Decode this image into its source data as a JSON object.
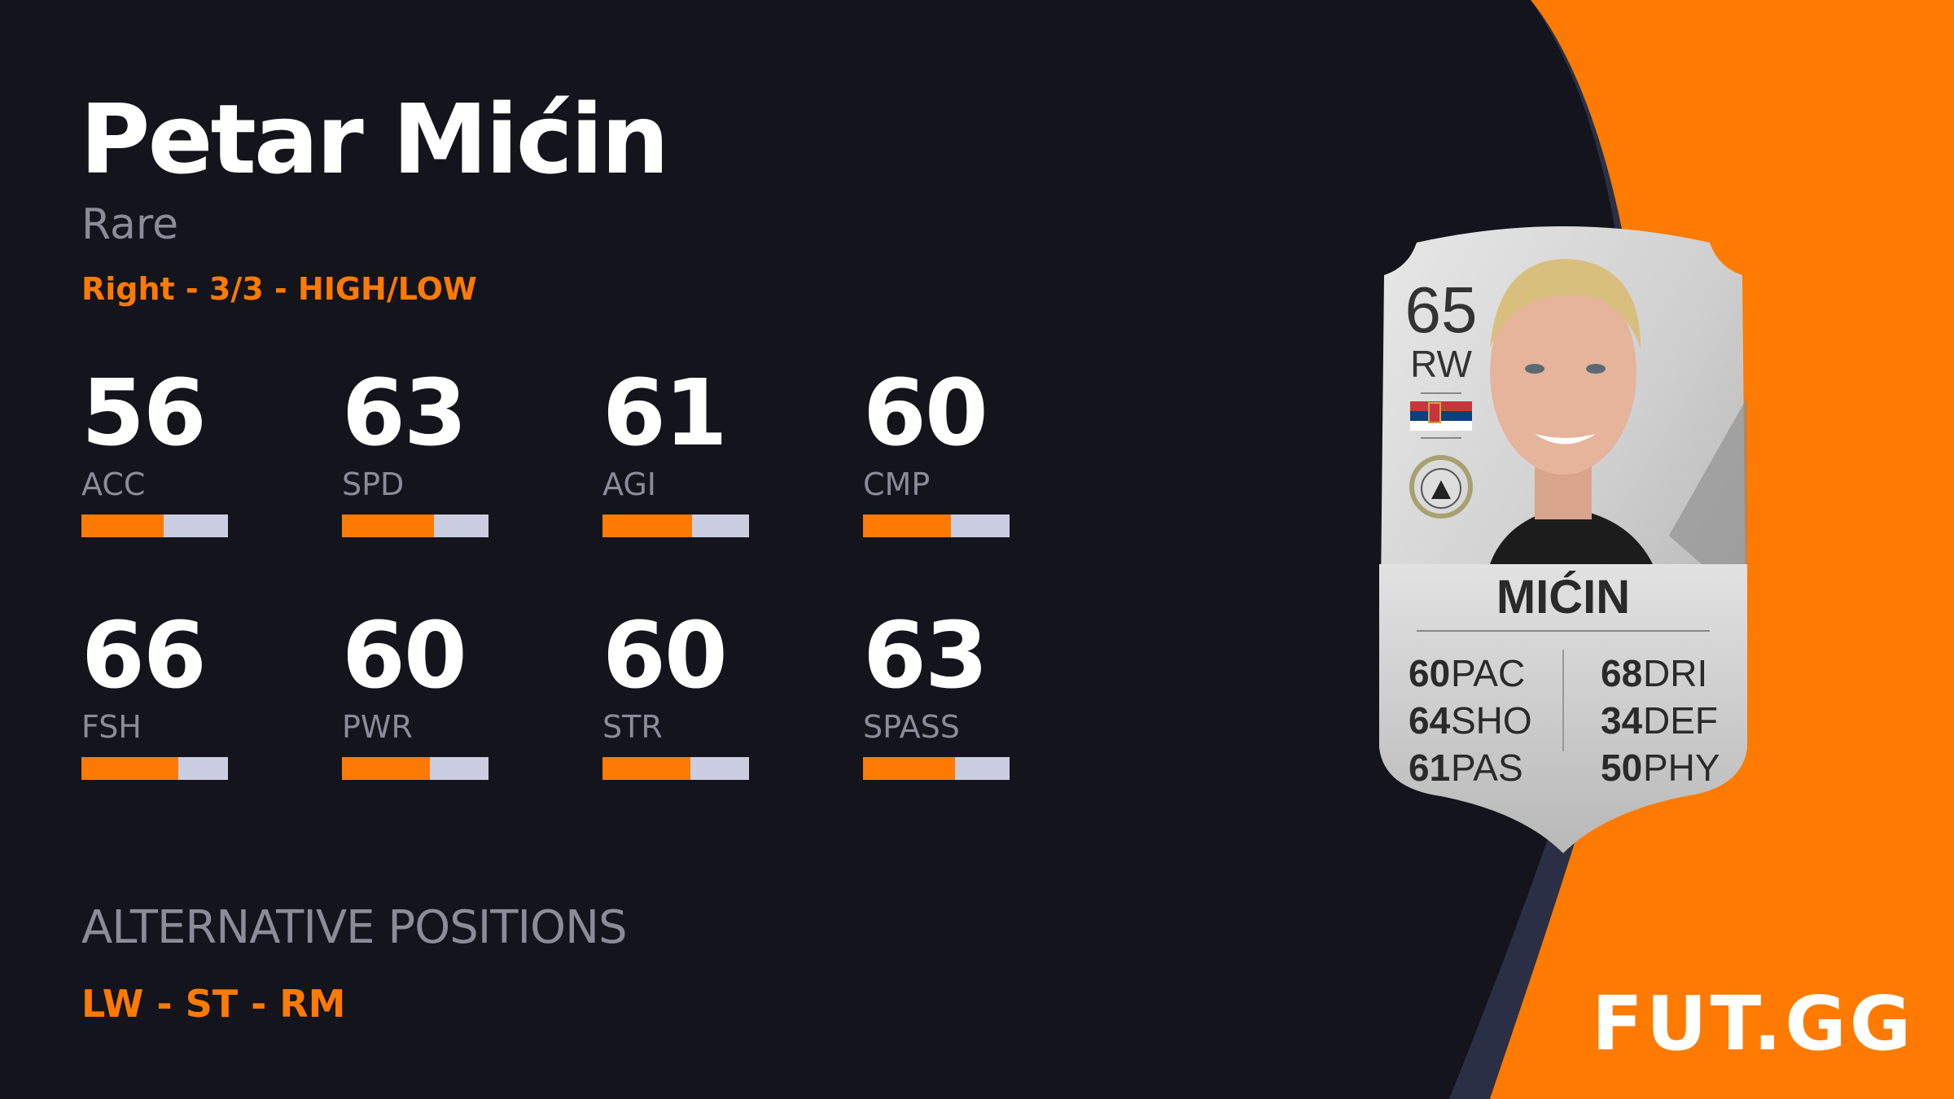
{
  "player": {
    "name": "Petar Mićin",
    "rarity": "Rare",
    "info": "Right - 3/3 - HIGH/LOW"
  },
  "stats": [
    {
      "label": "ACC",
      "value": 56
    },
    {
      "label": "SPD",
      "value": 63
    },
    {
      "label": "AGI",
      "value": 61
    },
    {
      "label": "CMP",
      "value": 60
    },
    {
      "label": "FSH",
      "value": 66
    },
    {
      "label": "PWR",
      "value": 60
    },
    {
      "label": "STR",
      "value": 60
    },
    {
      "label": "SPASS",
      "value": 63
    }
  ],
  "alternative": {
    "heading": "ALTERNATIVE POSITIONS",
    "positions": "LW - ST - RM"
  },
  "card": {
    "rating": "65",
    "position": "RW",
    "name": "MIĆIN",
    "nation_flag": "serbia-flag",
    "club_badge": "udinese-badge",
    "left": [
      {
        "v": "60",
        "l": "PAC"
      },
      {
        "v": "64",
        "l": "SHO"
      },
      {
        "v": "61",
        "l": "PAS"
      }
    ],
    "right": [
      {
        "v": "68",
        "l": "DRI"
      },
      {
        "v": "34",
        "l": "DEF"
      },
      {
        "v": "50",
        "l": "PHY"
      }
    ]
  },
  "brand": {
    "logo": "FUT.GG"
  },
  "colors": {
    "background": "#13141c",
    "accent": "#ff7a00",
    "track": "#cbcde0",
    "muted": "#8a8c98"
  }
}
